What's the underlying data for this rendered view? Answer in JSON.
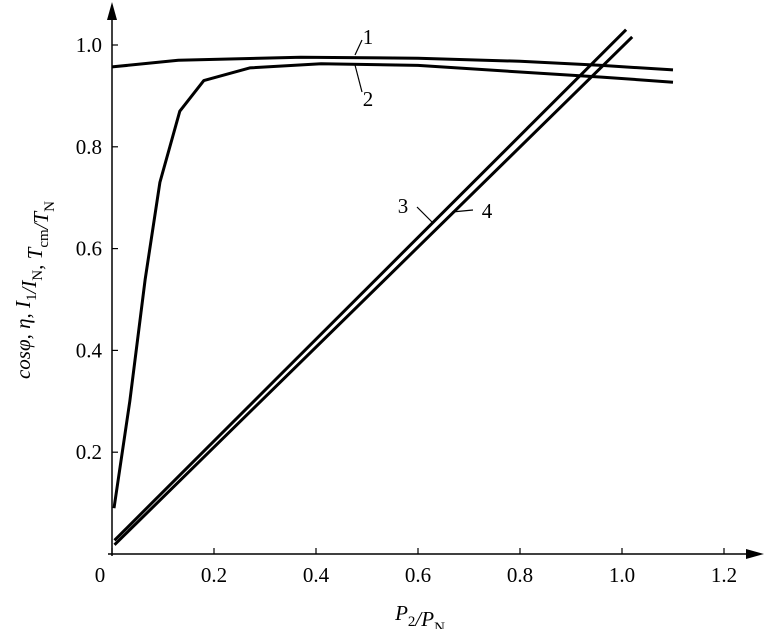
{
  "chart_data": {
    "type": "line",
    "x_label": [
      [
        "P",
        "2"
      ],
      [
        "/P",
        "N"
      ]
    ],
    "y_label": [
      [
        "cosφ, η, I",
        "1"
      ],
      [
        "/I",
        "N"
      ],
      [
        ", T",
        "cm"
      ],
      [
        "/T",
        "N"
      ]
    ],
    "xlim": [
      0,
      1.27
    ],
    "ylim": [
      0,
      1.08
    ],
    "xticks": [
      0,
      0.2,
      0.4,
      0.6,
      0.8,
      {
        "value": 1.0,
        "label": "1.0"
      },
      1.2
    ],
    "yticks": [
      0.2,
      0.4,
      0.6,
      0.8,
      {
        "value": 1.0,
        "label": "1.0"
      }
    ],
    "series": [
      {
        "name": "1",
        "color": "#000000",
        "x": [
          0,
          0.13,
          0.37,
          0.6,
          0.8,
          0.96,
          1.1
        ],
        "values": [
          0.957,
          0.97,
          0.976,
          0.974,
          0.968,
          0.96,
          0.951
        ]
      },
      {
        "name": "2",
        "color": "#000000",
        "x": [
          0.004,
          0.035,
          0.065,
          0.094,
          0.133,
          0.18,
          0.27,
          0.41,
          0.6,
          0.8,
          0.96,
          1.1
        ],
        "values": [
          0.09,
          0.3,
          0.54,
          0.73,
          0.87,
          0.93,
          0.955,
          0.963,
          0.96,
          0.947,
          0.937,
          0.927
        ]
      },
      {
        "name": "3",
        "color": "#000000",
        "x": [
          0.005,
          1.008
        ],
        "values": [
          0.027,
          1.03
        ]
      },
      {
        "name": "4",
        "color": "#000000",
        "x": [
          0.005,
          1.02
        ],
        "values": [
          0.018,
          1.016
        ]
      }
    ]
  }
}
